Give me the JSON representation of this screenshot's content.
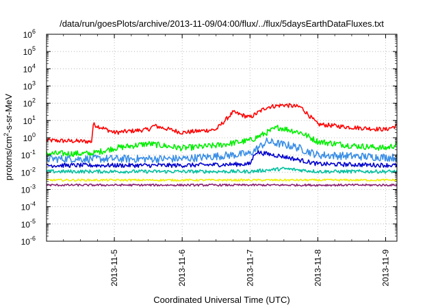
{
  "chart_data": {
    "type": "line",
    "title": "/data/run/goesPlots/archive/2013-11-09/04:00/flux/../flux/5daysEarthDataFluxes.txt",
    "xlabel": "Coordinated Universal Time (UTC)",
    "ylabel": "protons/cm²-s-sr-MeV",
    "y_scale": "log",
    "ylim": [
      1e-06,
      1000000.0
    ],
    "xlim": [
      "2013-11-04 00:00",
      "2013-11-09 04:00"
    ],
    "grid": true,
    "x_ticks": [
      "2013-11-5",
      "2013-11-6",
      "2013-11-7",
      "2013-11-8",
      "2013-11-9"
    ],
    "x_tick_dates": [
      "2013-11-05 00:00",
      "2013-11-06 00:00",
      "2013-11-07 00:00",
      "2013-11-08 00:00",
      "2013-11-09 00:00"
    ],
    "y_ticks": [
      {
        "base": "10",
        "exp": "-6"
      },
      {
        "base": "10",
        "exp": "-5"
      },
      {
        "base": "10",
        "exp": "-4"
      },
      {
        "base": "10",
        "exp": "-3"
      },
      {
        "base": "10",
        "exp": "-2"
      },
      {
        "base": "10",
        "exp": "-1"
      },
      {
        "base": "10",
        "exp": "0"
      },
      {
        "base": "10",
        "exp": "1"
      },
      {
        "base": "10",
        "exp": "2"
      },
      {
        "base": "10",
        "exp": "3"
      },
      {
        "base": "10",
        "exp": "4"
      },
      {
        "base": "10",
        "exp": "5"
      },
      {
        "base": "10",
        "exp": "6"
      }
    ],
    "series": [
      {
        "color": "#ff0000",
        "noise": 0.25,
        "points": [
          [
            "2013-11-04 00:00",
            0.7
          ],
          [
            "2013-11-04 16:00",
            0.6
          ],
          [
            "2013-11-04 16:30",
            6
          ],
          [
            "2013-11-05 00:00",
            2
          ],
          [
            "2013-11-05 12:00",
            3
          ],
          [
            "2013-11-05 14:00",
            5
          ],
          [
            "2013-11-06 00:00",
            2
          ],
          [
            "2013-11-06 12:00",
            3
          ],
          [
            "2013-11-06 18:00",
            30
          ],
          [
            "2013-11-07 00:00",
            15
          ],
          [
            "2013-11-07 06:00",
            60
          ],
          [
            "2013-11-07 12:00",
            80
          ],
          [
            "2013-11-07 18:00",
            60
          ],
          [
            "2013-11-08 00:00",
            6
          ],
          [
            "2013-11-08 12:00",
            4
          ],
          [
            "2013-11-09 00:00",
            3
          ],
          [
            "2013-11-09 04:00",
            5
          ]
        ]
      },
      {
        "color": "#00ee00",
        "noise": 0.35,
        "points": [
          [
            "2013-11-04 00:00",
            0.12
          ],
          [
            "2013-11-04 16:00",
            0.12
          ],
          [
            "2013-11-05 00:00",
            0.25
          ],
          [
            "2013-11-05 12:00",
            0.45
          ],
          [
            "2013-11-06 00:00",
            0.25
          ],
          [
            "2013-11-06 12:00",
            0.35
          ],
          [
            "2013-11-07 00:00",
            0.7
          ],
          [
            "2013-11-07 10:00",
            4
          ],
          [
            "2013-11-07 18:00",
            2
          ],
          [
            "2013-11-08 00:00",
            0.6
          ],
          [
            "2013-11-08 12:00",
            0.35
          ],
          [
            "2013-11-09 00:00",
            0.25
          ],
          [
            "2013-11-09 04:00",
            0.4
          ]
        ]
      },
      {
        "color": "#3a8ee6",
        "noise": 0.45,
        "points": [
          [
            "2013-11-04 00:00",
            0.06
          ],
          [
            "2013-11-05 00:00",
            0.06
          ],
          [
            "2013-11-06 00:00",
            0.06
          ],
          [
            "2013-11-07 00:00",
            0.12
          ],
          [
            "2013-11-07 06:00",
            0.6
          ],
          [
            "2013-11-07 16:00",
            0.3
          ],
          [
            "2013-11-08 00:00",
            0.1
          ],
          [
            "2013-11-09 04:00",
            0.07
          ]
        ]
      },
      {
        "color": "#0000cc",
        "noise": 0.25,
        "points": [
          [
            "2013-11-04 00:00",
            0.025
          ],
          [
            "2013-11-05 00:00",
            0.025
          ],
          [
            "2013-11-06 00:00",
            0.025
          ],
          [
            "2013-11-07 00:00",
            0.03
          ],
          [
            "2013-11-07 02:00",
            0.15
          ],
          [
            "2013-11-07 12:00",
            0.08
          ],
          [
            "2013-11-08 00:00",
            0.03
          ],
          [
            "2013-11-09 04:00",
            0.025
          ]
        ]
      },
      {
        "color": "#00c0a0",
        "noise": 0.2,
        "points": [
          [
            "2013-11-04 00:00",
            0.011
          ],
          [
            "2013-11-07 00:00",
            0.011
          ],
          [
            "2013-11-07 12:00",
            0.016
          ],
          [
            "2013-11-08 00:00",
            0.011
          ],
          [
            "2013-11-09 04:00",
            0.011
          ]
        ]
      },
      {
        "color": "#eeee00",
        "noise": 0.12,
        "points": [
          [
            "2013-11-04 00:00",
            0.0035
          ],
          [
            "2013-11-09 04:00",
            0.0035
          ]
        ]
      },
      {
        "color": "#8b2070",
        "noise": 0.12,
        "points": [
          [
            "2013-11-04 00:00",
            0.0018
          ],
          [
            "2013-11-09 04:00",
            0.0018
          ]
        ]
      }
    ]
  }
}
